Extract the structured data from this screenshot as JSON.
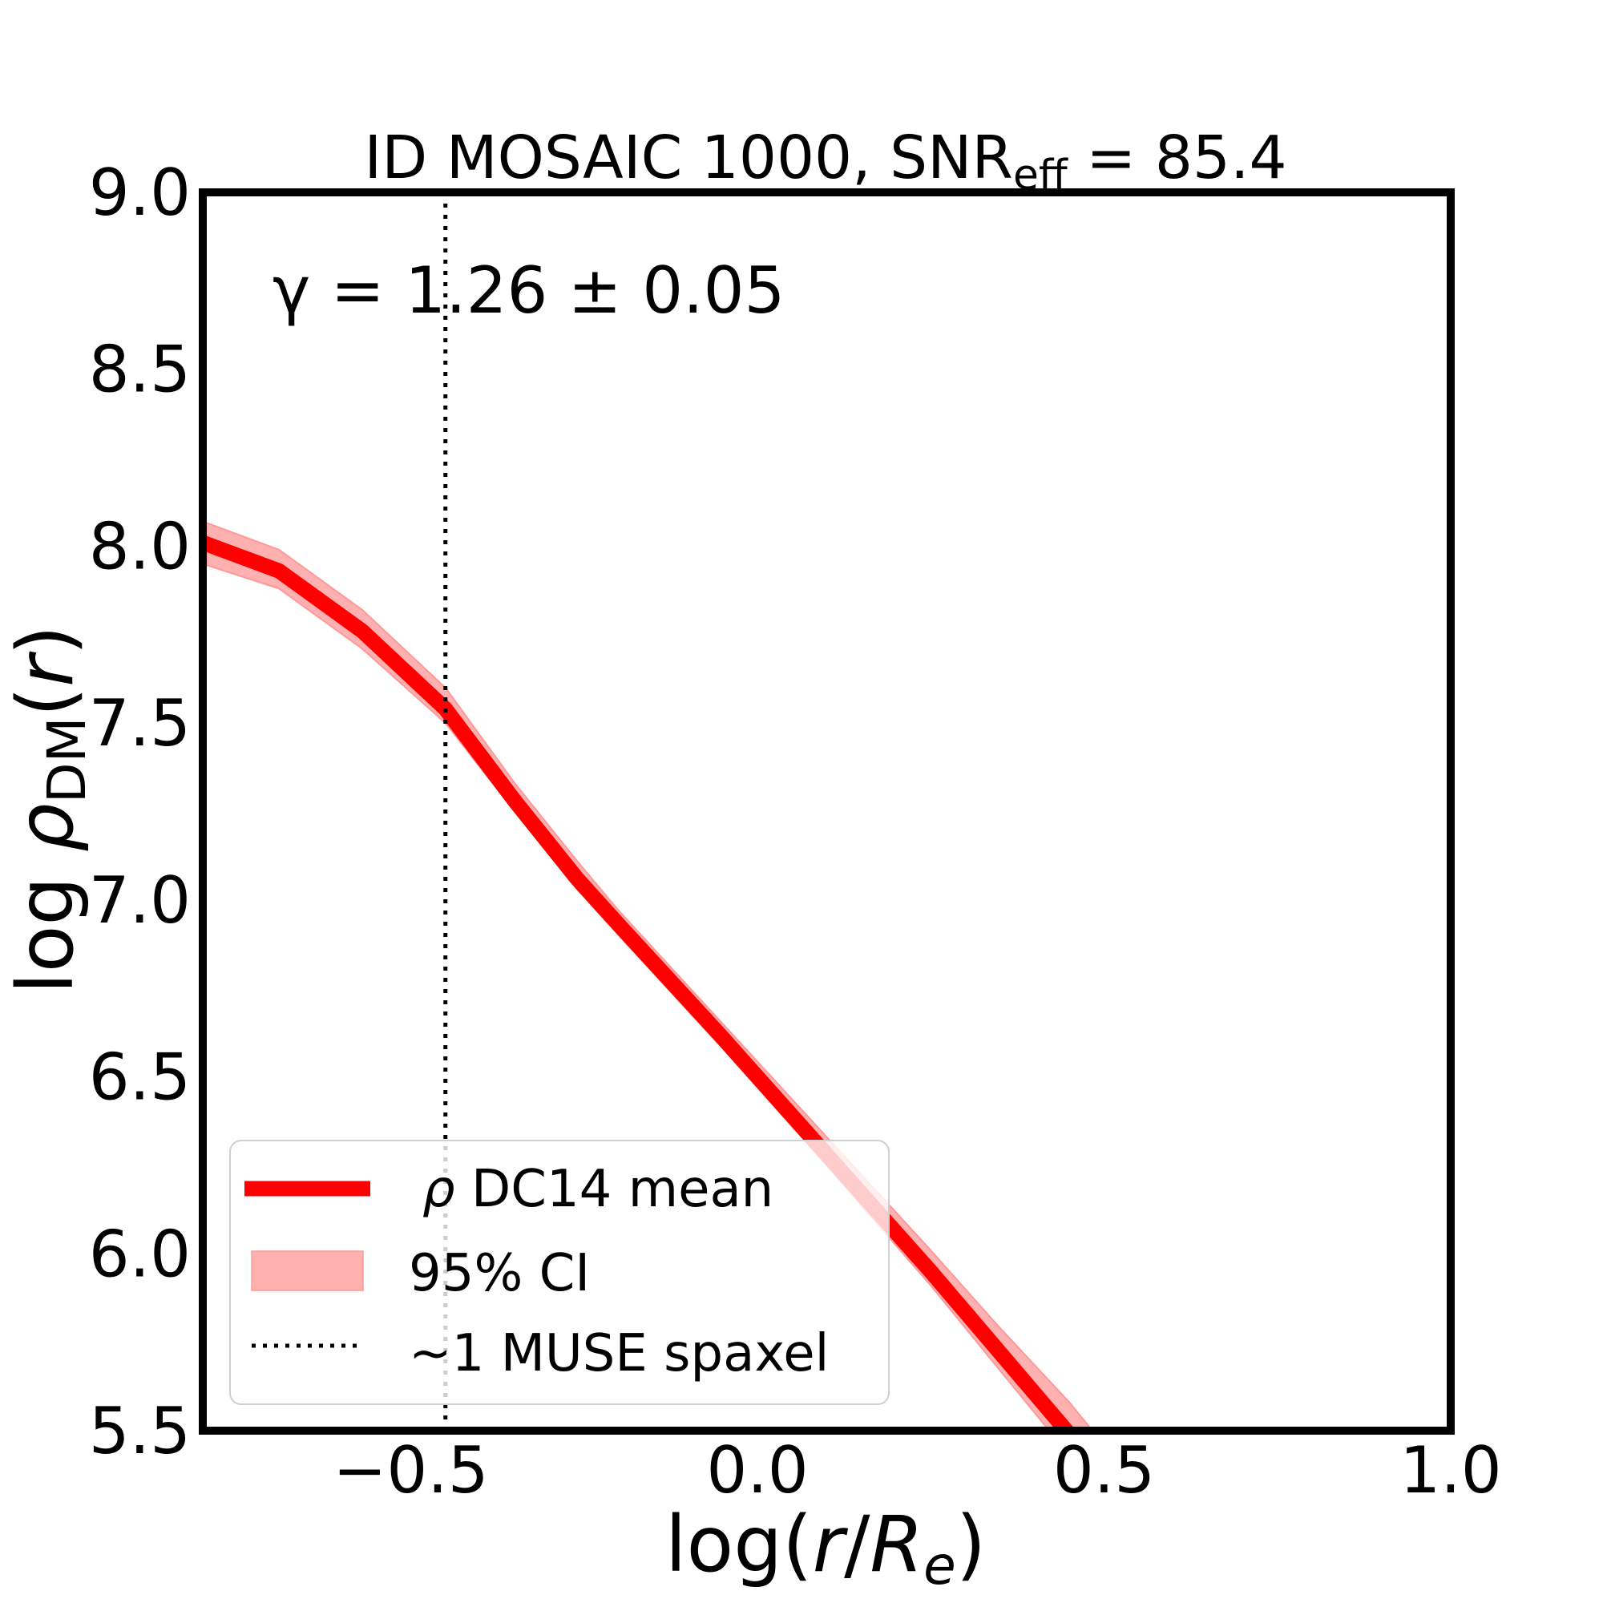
{
  "chart_data": {
    "type": "line",
    "title": "ID MOSAIC 1000, SNR",
    "title_sub": "eff",
    "title_tail": " = 85.4",
    "annotation": "γ = 1.26 ± 0.05",
    "xlabel": {
      "pre": "log(",
      "r": "r",
      "slash": "/",
      "R": "R",
      "sub": "e",
      "post": ")"
    },
    "ylabel": {
      "pre": "log ",
      "rho": "ρ",
      "sub": "DM",
      "post1": "(",
      "r": "r",
      "post2": ")"
    },
    "xlim": [
      -0.8,
      1.0
    ],
    "ylim": [
      5.5,
      9.0
    ],
    "xticks": [
      -0.5,
      0.0,
      0.5,
      1.0
    ],
    "xtick_labels": [
      "−0.5",
      "0.0",
      "0.5",
      "1.0"
    ],
    "yticks": [
      5.5,
      6.0,
      6.5,
      7.0,
      7.5,
      8.0,
      8.5,
      9.0
    ],
    "ytick_labels": [
      "5.5",
      "6.0",
      "6.5",
      "7.0",
      "7.5",
      "8.0",
      "8.5",
      "9.0"
    ],
    "grid": false,
    "legend_placement": "lower-left",
    "series": [
      {
        "name": "ρ DC14 mean",
        "color": "#ff0000",
        "x": [
          -0.8,
          -0.69,
          -0.57,
          -0.45,
          -0.35,
          -0.26,
          -0.2,
          -0.05,
          0.1,
          0.25,
          0.35,
          0.45,
          0.5
        ],
        "y": [
          8.01,
          7.93,
          7.76,
          7.54,
          7.28,
          7.06,
          6.93,
          6.61,
          6.28,
          5.95,
          5.72,
          5.49,
          5.36
        ],
        "ci_lower": [
          7.95,
          7.88,
          7.71,
          7.5,
          7.25,
          7.03,
          6.9,
          6.58,
          6.25,
          5.91,
          5.67,
          5.43,
          5.29
        ],
        "ci_upper": [
          8.07,
          7.99,
          7.82,
          7.6,
          7.33,
          7.11,
          6.97,
          6.65,
          6.33,
          6.01,
          5.79,
          5.58,
          5.46
        ]
      }
    ],
    "legend": [
      {
        "label_rho": "ρ",
        "label": " DC14 mean",
        "kind": "line",
        "color": "#ff0000"
      },
      {
        "label": "95% CI",
        "kind": "band",
        "color": "#ffb0b0"
      },
      {
        "label": "~1 MUSE spaxel",
        "kind": "dotted",
        "color": "#000000"
      }
    ],
    "vline": {
      "x": -0.45,
      "style": "dotted",
      "label": "~1 MUSE spaxel"
    }
  }
}
